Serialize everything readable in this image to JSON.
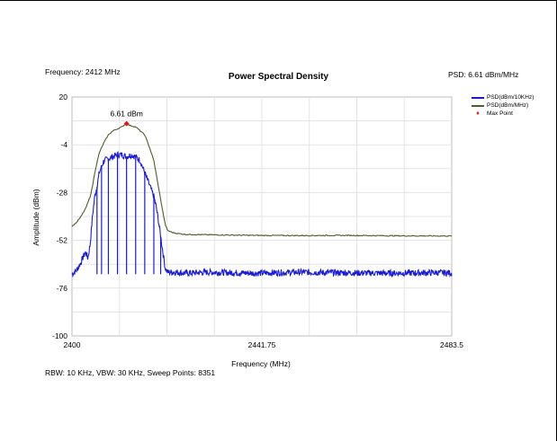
{
  "header": {
    "frequency_text": "Frequency: 2412 MHz",
    "psd_text": "PSD: 6.61 dBm/MHz"
  },
  "footer": {
    "settings_text": "RBW: 10 KHz,  VBW: 30 KHz,  Sweep Points: 8351"
  },
  "chart_data": {
    "type": "line",
    "title": "Power Spectral Density",
    "xlabel": "Frequency (MHz)",
    "ylabel": "Amplitude (dBm)",
    "xlim": [
      2400,
      2483.5
    ],
    "ylim": [
      -100,
      20
    ],
    "x_ticks": [
      "2400",
      "2441.75",
      "2483.5"
    ],
    "y_ticks": [
      "20",
      "-4",
      "-28",
      "-52",
      "-76",
      "-100"
    ],
    "grid": true,
    "legend_position": "top-right",
    "series": [
      {
        "name": "PSD(dBm/10KHz)",
        "color": "#1a1adc",
        "x": [
          2400,
          2401,
          2402,
          2402.5,
          2403,
          2403.5,
          2404,
          2404.5,
          2405,
          2405.5,
          2406,
          2407,
          2408,
          2409,
          2410,
          2411,
          2412,
          2413,
          2414,
          2415,
          2416,
          2417,
          2418,
          2418.5,
          2419,
          2419.5,
          2420,
          2420.5,
          2421,
          2422,
          2423,
          2425,
          2430,
          2440,
          2450,
          2460,
          2470,
          2480,
          2483.5
        ],
        "values": [
          -69,
          -67,
          -63,
          -60,
          -58,
          -61,
          -54,
          -40,
          -30,
          -25,
          -18,
          -12,
          -11,
          -10,
          -9,
          -9,
          -10,
          -9,
          -10,
          -12,
          -18,
          -24,
          -30,
          -35,
          -42,
          -50,
          -58,
          -66,
          -68,
          -68,
          -68,
          -68.5,
          -68,
          -68.5,
          -68,
          -68.3,
          -68.5,
          -68.2,
          -68.4
        ]
      },
      {
        "name": "PSD(dBm/MHz)",
        "color": "#4d5e2a",
        "x": [
          2400,
          2401,
          2402,
          2403,
          2404,
          2404.5,
          2405,
          2406,
          2407,
          2408,
          2409,
          2410,
          2411,
          2411.5,
          2412,
          2412.5,
          2413,
          2414,
          2415,
          2416,
          2417,
          2418,
          2419,
          2420,
          2420.5,
          2421,
          2422,
          2423,
          2425,
          2430,
          2440,
          2450,
          2460,
          2470,
          2480,
          2483.5
        ],
        "values": [
          -45,
          -43,
          -40,
          -36,
          -30,
          -25,
          -18,
          -8,
          -3,
          1,
          3,
          4,
          5,
          6,
          6.61,
          6,
          5.5,
          5,
          3,
          1,
          -5,
          -12,
          -25,
          -38,
          -44,
          -47,
          -48,
          -48.5,
          -49,
          -49.2,
          -49.5,
          -49.6,
          -49.5,
          -49.7,
          -49.8,
          -49.8
        ]
      },
      {
        "name": "Max Point",
        "color": "#e21a1a",
        "type": "scatter",
        "x": [
          2412
        ],
        "values": [
          6.61
        ],
        "annotation": "6.61 dBm"
      }
    ],
    "blue_spikes_x": [
      2405.5,
      2406.5,
      2408,
      2410,
      2412,
      2414,
      2416,
      2418,
      2419.5
    ],
    "blue_spikes_floor": -69
  }
}
